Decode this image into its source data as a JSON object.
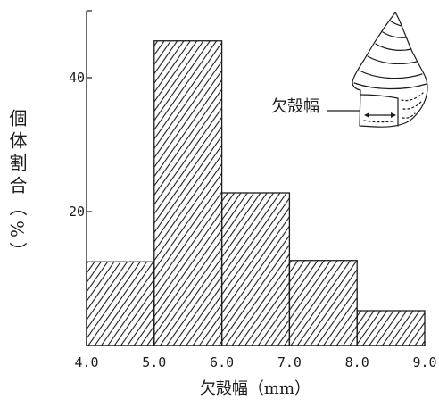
{
  "colors": {
    "ink": "#1c1c1c",
    "background": "#ffffff"
  },
  "chart_data": {
    "type": "bar",
    "bin_edges": [
      4.0,
      5.0,
      6.0,
      7.0,
      8.0,
      9.0
    ],
    "values": [
      12.5,
      45.5,
      22.8,
      12.7,
      5.2
    ],
    "x_ticks": [
      "4.0",
      "5.0",
      "6.0",
      "7.0",
      "8.0",
      "9.0"
    ],
    "y_ticks": [
      20,
      40
    ],
    "xlim": [
      4.0,
      9.0
    ],
    "ylim": [
      0,
      50
    ],
    "xlabel": "欠殻幅（mm）",
    "ylabel": "個体割合（%）",
    "annotation": "欠殻幅",
    "grid": false
  }
}
